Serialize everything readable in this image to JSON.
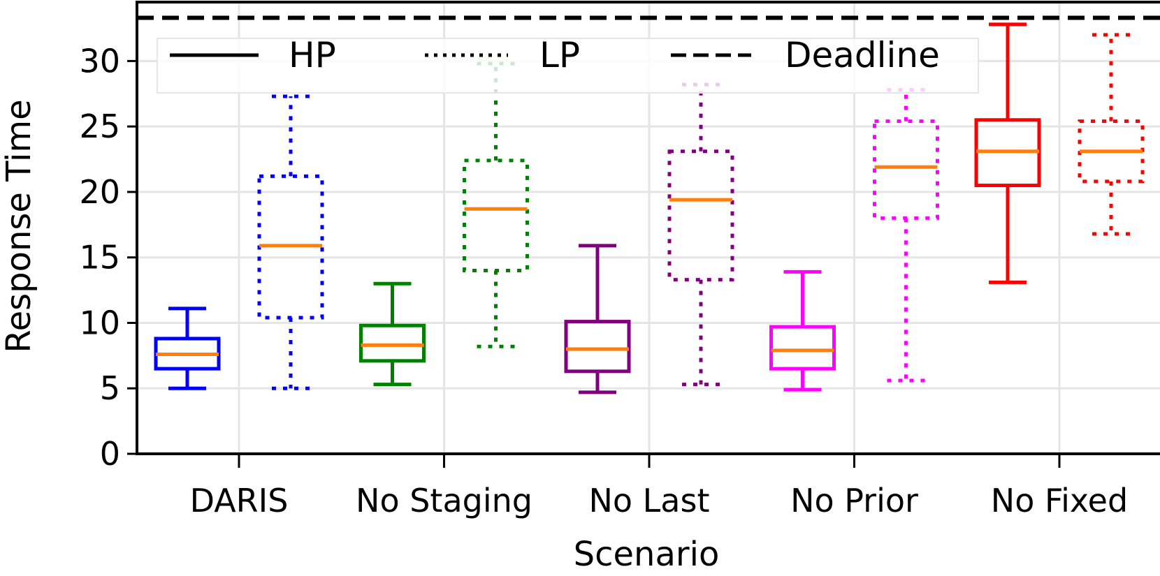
{
  "chart_data": {
    "type": "box",
    "xlabel": "Scenario",
    "ylabel": "Response Time",
    "ylim": [
      0,
      34.5
    ],
    "yticks": [
      0,
      5,
      10,
      15,
      20,
      25,
      30
    ],
    "grid": true,
    "legend": {
      "placement": "top",
      "entries": [
        {
          "label": "HP",
          "style": "solid"
        },
        {
          "label": "LP",
          "style": "dotted"
        },
        {
          "label": "Deadline",
          "style": "dashed"
        }
      ]
    },
    "deadline": 33.3,
    "categories": [
      "DARIS",
      "No Staging",
      "No Last",
      "No Prior",
      "No Fixed"
    ],
    "colors": [
      "#0000ff",
      "#008000",
      "#800080",
      "#ff00ff",
      "#ff0000"
    ],
    "median_color": "#ff7f0e",
    "series": [
      {
        "name": "HP",
        "style": "solid",
        "boxes": [
          {
            "whisker_low": 5.0,
            "q1": 6.5,
            "median": 7.6,
            "q3": 8.8,
            "whisker_high": 11.1
          },
          {
            "whisker_low": 5.3,
            "q1": 7.1,
            "median": 8.3,
            "q3": 9.8,
            "whisker_high": 13.0
          },
          {
            "whisker_low": 4.7,
            "q1": 6.3,
            "median": 8.0,
            "q3": 10.1,
            "whisker_high": 15.9
          },
          {
            "whisker_low": 4.9,
            "q1": 6.5,
            "median": 7.9,
            "q3": 9.7,
            "whisker_high": 13.9
          },
          {
            "whisker_low": 13.1,
            "q1": 20.5,
            "median": 23.1,
            "q3": 25.5,
            "whisker_high": 32.8
          }
        ]
      },
      {
        "name": "LP",
        "style": "dotted",
        "boxes": [
          {
            "whisker_low": 5.0,
            "q1": 10.4,
            "median": 15.9,
            "q3": 21.2,
            "whisker_high": 27.3
          },
          {
            "whisker_low": 8.2,
            "q1": 14.0,
            "median": 18.7,
            "q3": 22.4,
            "whisker_high": 29.8
          },
          {
            "whisker_low": 5.3,
            "q1": 13.3,
            "median": 19.4,
            "q3": 23.1,
            "whisker_high": 28.2
          },
          {
            "whisker_low": 5.6,
            "q1": 18.0,
            "median": 21.9,
            "q3": 25.4,
            "whisker_high": 27.8
          },
          {
            "whisker_low": 16.8,
            "q1": 20.8,
            "median": 23.1,
            "q3": 25.4,
            "whisker_high": 32.0
          }
        ]
      }
    ]
  }
}
